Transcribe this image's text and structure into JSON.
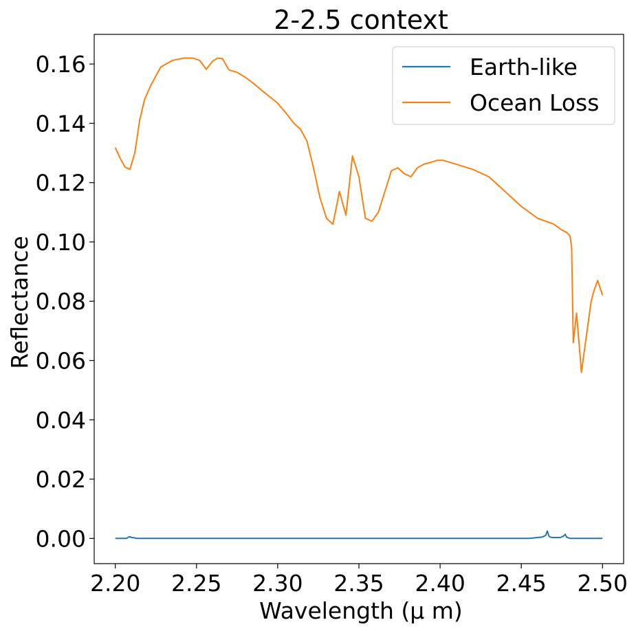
{
  "chart_data": {
    "type": "line",
    "title": "2-2.5 context",
    "xlabel": "Wavelength ($\\mu$ m)",
    "xlabel_display": "Wavelength (μ m)",
    "ylabel": "Reflectance",
    "xlim": [
      2.187,
      2.513
    ],
    "ylim": [
      -0.0085,
      0.17
    ],
    "xticks": [
      2.2,
      2.25,
      2.3,
      2.35,
      2.4,
      2.45,
      2.5
    ],
    "xtick_labels": [
      "2.20",
      "2.25",
      "2.30",
      "2.35",
      "2.40",
      "2.45",
      "2.50"
    ],
    "yticks": [
      0.0,
      0.02,
      0.04,
      0.06,
      0.08,
      0.1,
      0.12,
      0.14,
      0.16
    ],
    "ytick_labels": [
      "0.00",
      "0.02",
      "0.04",
      "0.06",
      "0.08",
      "0.10",
      "0.12",
      "0.14",
      "0.16"
    ],
    "grid": false,
    "legend_position": "top-right",
    "series": [
      {
        "name": "Earth-like",
        "color": "#1f77b4",
        "x": [
          2.2,
          2.207,
          2.208,
          2.209,
          2.21,
          2.212,
          2.213,
          2.3,
          2.4,
          2.455,
          2.46,
          2.463,
          2.465,
          2.466,
          2.467,
          2.468,
          2.47,
          2.474,
          2.476,
          2.477,
          2.478,
          2.48,
          2.5
        ],
        "y": [
          0.0,
          0.0,
          0.0004,
          0.0006,
          0.0003,
          0.0002,
          0.0,
          0.0,
          0.0,
          0.0,
          0.0003,
          0.0005,
          0.001,
          0.0025,
          0.0008,
          0.0004,
          0.0003,
          0.0003,
          0.0008,
          0.0014,
          0.0004,
          0.0,
          0.0
        ]
      },
      {
        "name": "Ocean Loss",
        "color": "#ff7f0e",
        "x": [
          2.2,
          2.203,
          2.206,
          2.209,
          2.212,
          2.215,
          2.218,
          2.222,
          2.228,
          2.235,
          2.242,
          2.248,
          2.252,
          2.256,
          2.26,
          2.263,
          2.266,
          2.27,
          2.275,
          2.28,
          2.285,
          2.29,
          2.295,
          2.3,
          2.305,
          2.31,
          2.314,
          2.318,
          2.322,
          2.326,
          2.33,
          2.334,
          2.338,
          2.342,
          2.346,
          2.35,
          2.354,
          2.358,
          2.362,
          2.366,
          2.37,
          2.374,
          2.378,
          2.382,
          2.386,
          2.39,
          2.394,
          2.398,
          2.402,
          2.41,
          2.42,
          2.43,
          2.44,
          2.45,
          2.46,
          2.47,
          2.475,
          2.478,
          2.48,
          2.481,
          2.482,
          2.484,
          2.486,
          2.487,
          2.489,
          2.491,
          2.493,
          2.495,
          2.497,
          2.5
        ],
        "y": [
          0.1318,
          0.1282,
          0.1252,
          0.1245,
          0.13,
          0.141,
          0.148,
          0.153,
          0.159,
          0.1612,
          0.162,
          0.162,
          0.1612,
          0.1582,
          0.161,
          0.162,
          0.1618,
          0.158,
          0.1572,
          0.1555,
          0.1535,
          0.1512,
          0.149,
          0.1468,
          0.1435,
          0.14,
          0.138,
          0.134,
          0.125,
          0.115,
          0.108,
          0.106,
          0.117,
          0.109,
          0.129,
          0.122,
          0.108,
          0.107,
          0.11,
          0.117,
          0.124,
          0.125,
          0.123,
          0.122,
          0.125,
          0.1262,
          0.1268,
          0.1275,
          0.1275,
          0.1262,
          0.1245,
          0.122,
          0.117,
          0.112,
          0.108,
          0.106,
          0.104,
          0.1032,
          0.102,
          0.098,
          0.066,
          0.076,
          0.063,
          0.056,
          0.064,
          0.072,
          0.08,
          0.084,
          0.087,
          0.082
        ]
      }
    ]
  }
}
